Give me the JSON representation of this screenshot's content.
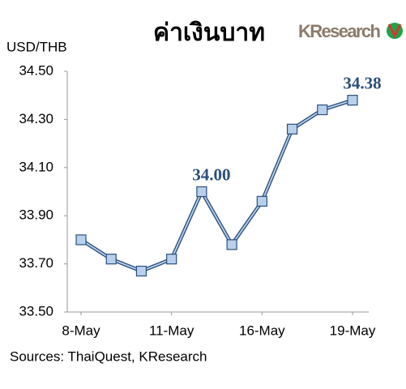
{
  "chart_data": {
    "type": "line",
    "title": "ค่าเงินบาท",
    "logo": "KResearch",
    "y_label": "USD/THB",
    "source": "Sources: ThaiQuest, KResearch",
    "categories": [
      "8-May",
      null,
      null,
      "11-May",
      null,
      null,
      "16-May",
      null,
      null,
      "19-May"
    ],
    "series": [
      {
        "name": "USD/THB",
        "color": "#2a4f7c",
        "marker_color": "#b9d0ec",
        "values": [
          33.8,
          33.72,
          33.67,
          33.72,
          34.0,
          33.78,
          33.96,
          34.26,
          34.34,
          34.38
        ],
        "value_labels": [
          null,
          null,
          null,
          null,
          "34.00",
          null,
          null,
          null,
          null,
          "34.38"
        ]
      }
    ],
    "ylim": [
      33.5,
      34.5
    ],
    "yticks": [
      {
        "value": 33.5,
        "label": "33.50"
      },
      {
        "value": 33.7,
        "label": "33.70"
      },
      {
        "value": 33.9,
        "label": "33.90"
      },
      {
        "value": 34.1,
        "label": "34.10"
      },
      {
        "value": 34.3,
        "label": "34.30"
      },
      {
        "value": 34.5,
        "label": "34.50"
      }
    ],
    "grid": false
  }
}
